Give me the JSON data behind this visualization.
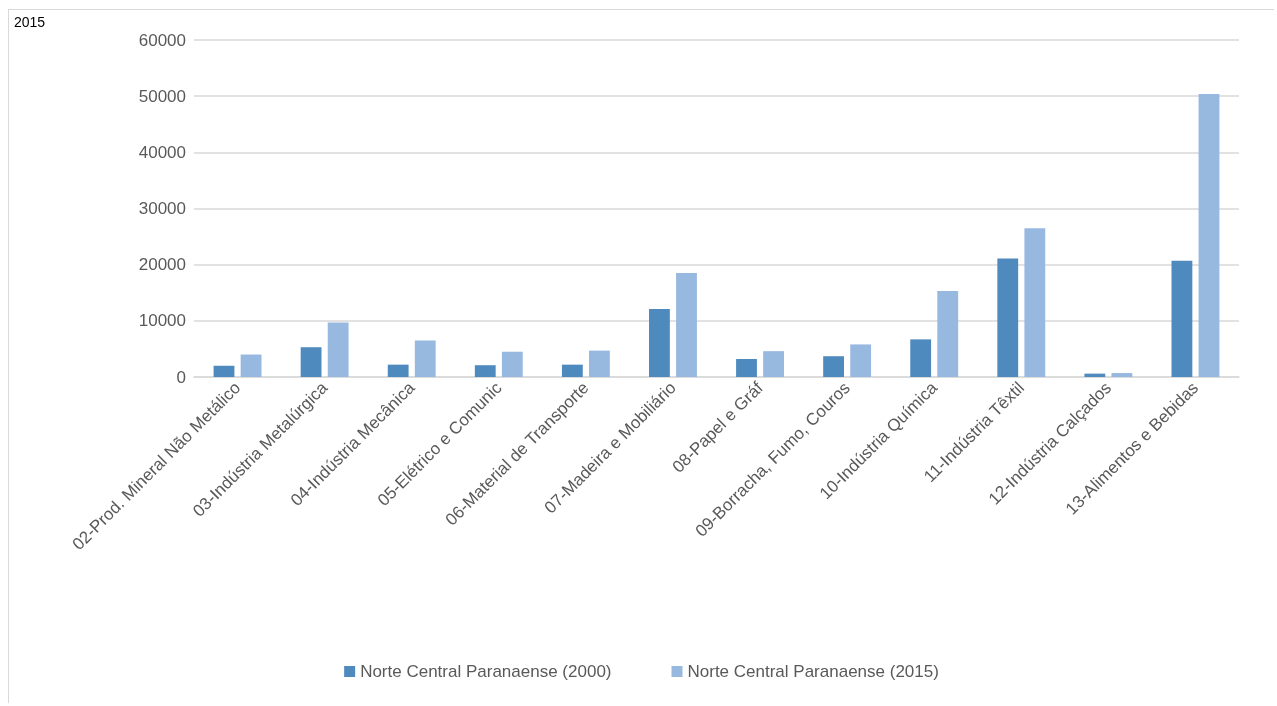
{
  "chart_data": {
    "type": "bar",
    "title": "2015",
    "categories": [
      "02-Prod. Mineral Não Metálico",
      "03-Indústria Metalúrgica",
      "04-Indústria Mecânica",
      "05-Elétrico e Comunic",
      "06-Material de Transporte",
      "07-Madeira e Mobiliário",
      "08-Papel e Gráf",
      "09-Borracha, Fumo, Couros",
      "10-Indústria Química",
      "11-Indústria Têxtil",
      "12-Indústria Calçados",
      "13-Alimentos e Bebidas"
    ],
    "series": [
      {
        "name": "Norte Central Paranaense (2000)",
        "color": "#4f8abe",
        "values": [
          2000,
          5300,
          2200,
          2100,
          2200,
          12100,
          3200,
          3700,
          6700,
          21100,
          600,
          20700
        ]
      },
      {
        "name": "Norte Central Paranaense (2015)",
        "color": "#97b8df",
        "values": [
          4000,
          9700,
          6500,
          4500,
          4700,
          18500,
          4600,
          5800,
          15300,
          26500,
          700,
          50400
        ]
      }
    ],
    "ylim": [
      0,
      60000
    ],
    "yticks": [
      0,
      10000,
      20000,
      30000,
      40000,
      50000,
      60000
    ],
    "grid": "y",
    "legend": "bottom"
  }
}
